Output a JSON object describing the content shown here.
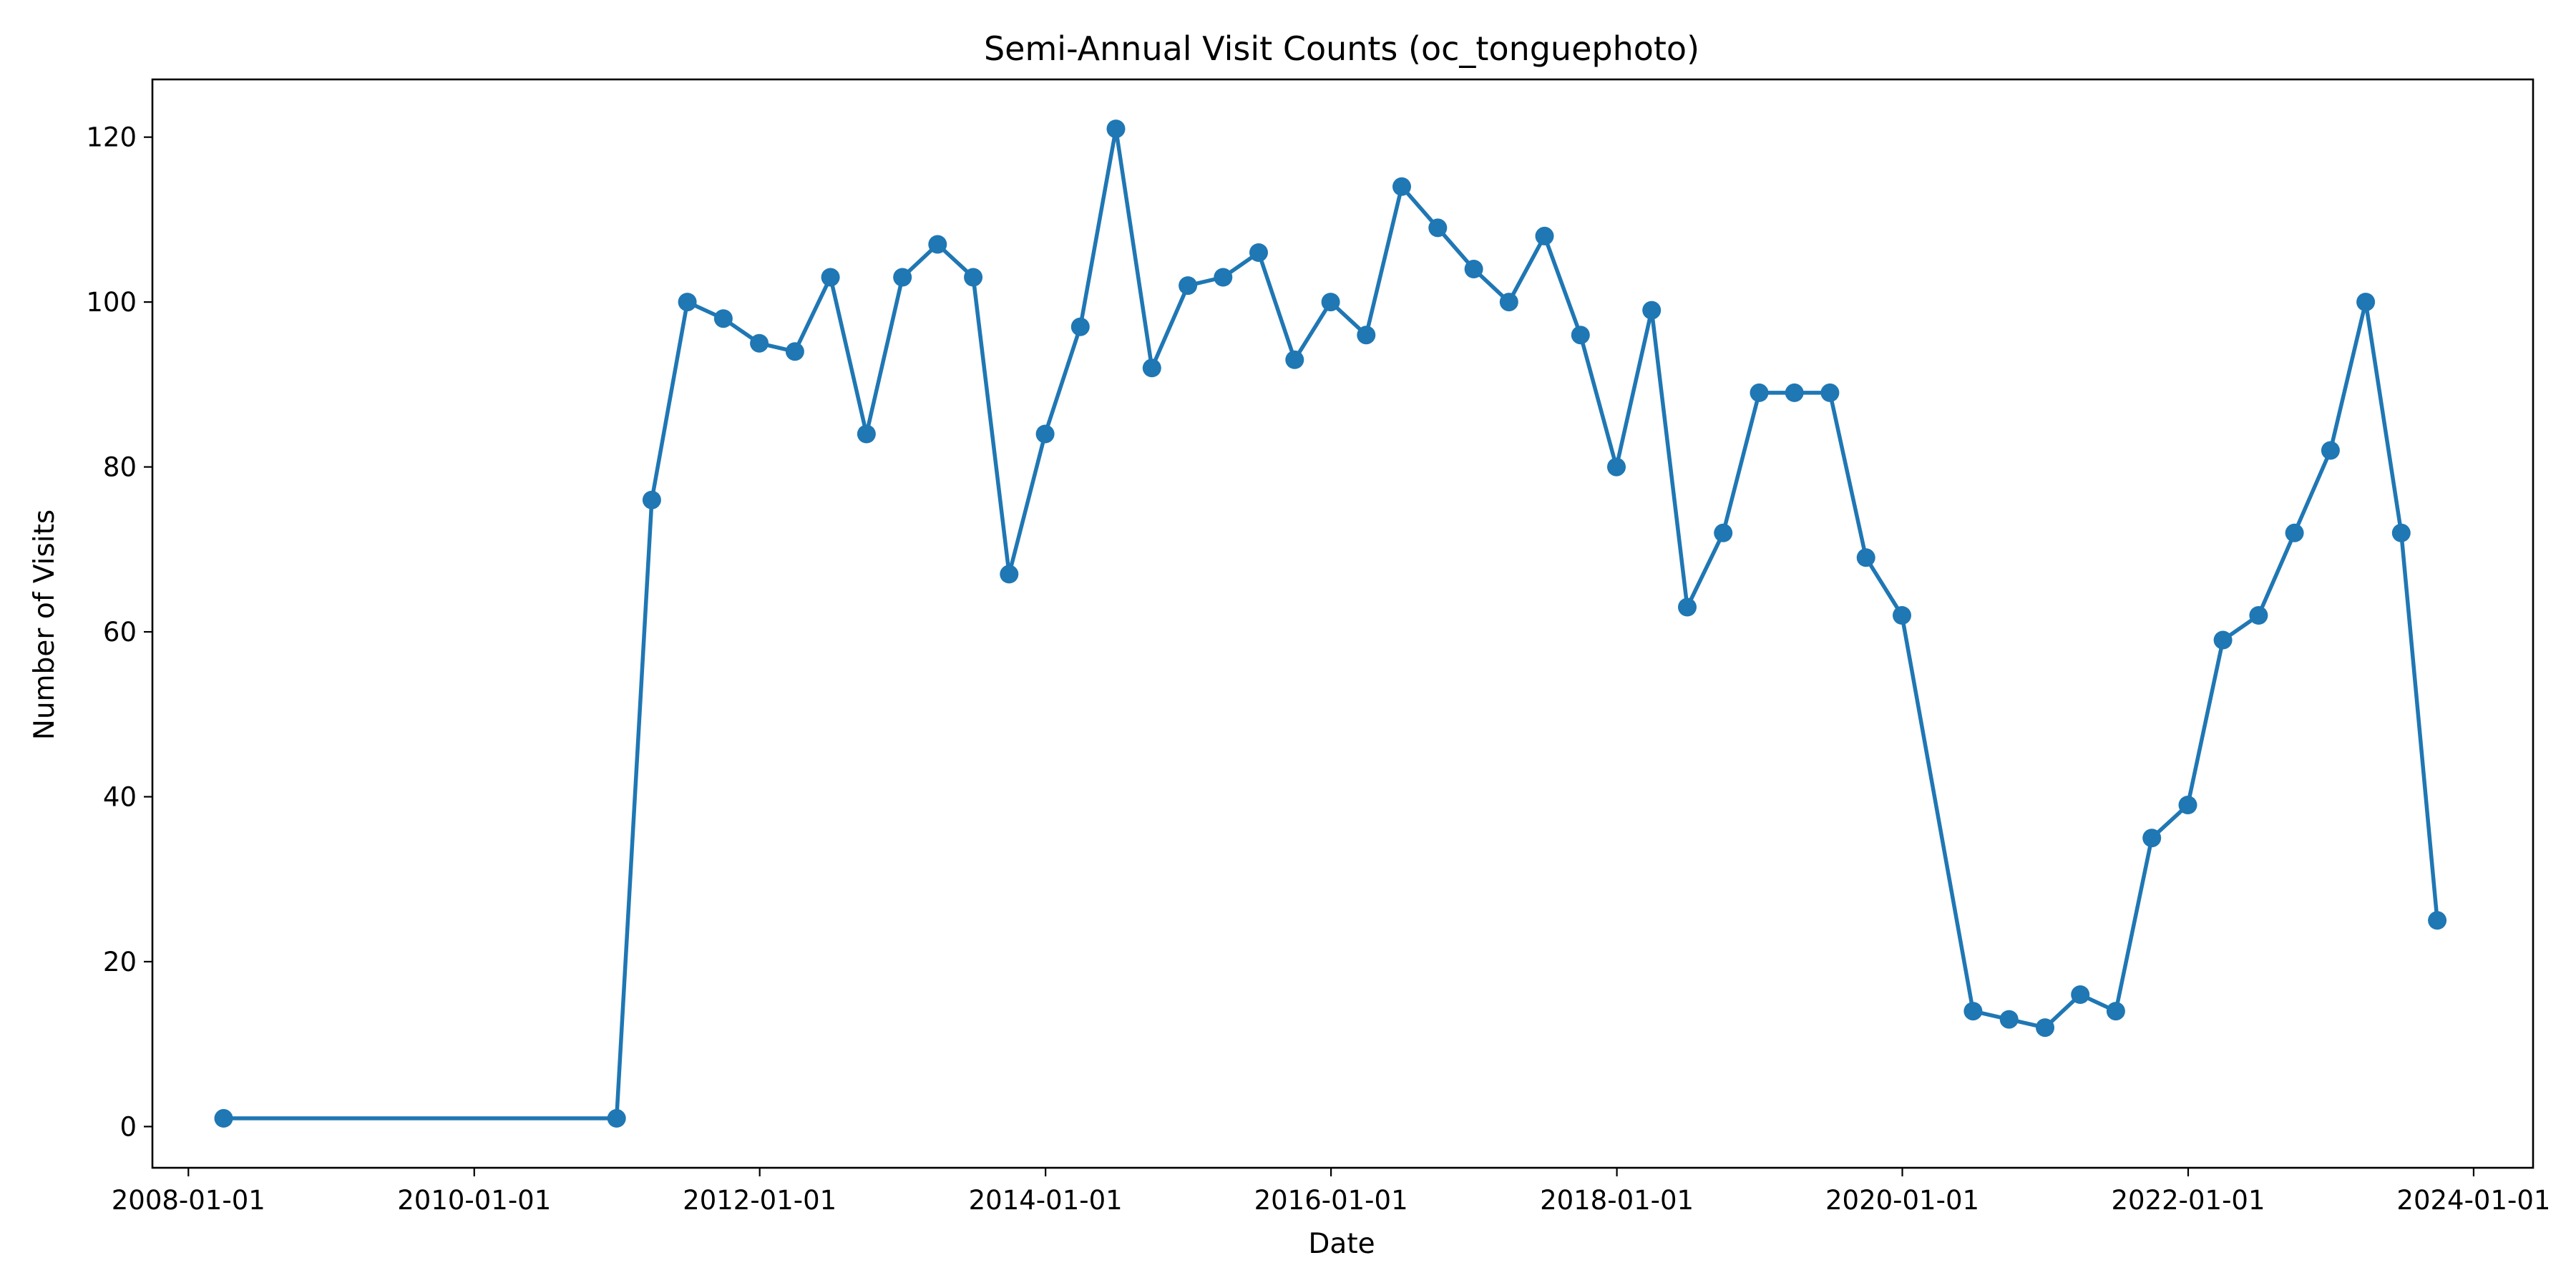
{
  "chart_data": {
    "type": "line",
    "title": "Semi-Annual Visit Counts (oc_tonguephoto)",
    "xlabel": "Date",
    "ylabel": "Number of Visits",
    "x_tick_labels": [
      "2008-01-01",
      "2010-01-01",
      "2012-01-01",
      "2014-01-01",
      "2016-01-01",
      "2018-01-01",
      "2020-01-01",
      "2022-01-01",
      "2024-01-01"
    ],
    "y_tick_labels": [
      "0",
      "20",
      "40",
      "60",
      "80",
      "100",
      "120"
    ],
    "xlim": [
      "2007-10-01",
      "2024-06-01"
    ],
    "ylim": [
      -5,
      127
    ],
    "grid": false,
    "legend": "none",
    "color": "#1f77b4",
    "series": [
      {
        "x": [
          "2008-03-31",
          "2010-12-31",
          "2011-03-31",
          "2011-06-30",
          "2011-09-30",
          "2011-12-31",
          "2012-03-31",
          "2012-06-30",
          "2012-09-30",
          "2012-12-31",
          "2013-03-31",
          "2013-06-30",
          "2013-09-30",
          "2013-12-31",
          "2014-03-31",
          "2014-06-30",
          "2014-09-30",
          "2014-12-31",
          "2015-03-31",
          "2015-06-30",
          "2015-09-30",
          "2015-12-31",
          "2016-03-31",
          "2016-06-30",
          "2016-09-30",
          "2016-12-31",
          "2017-03-31",
          "2017-06-30",
          "2017-09-30",
          "2017-12-31",
          "2018-03-31",
          "2018-06-30",
          "2018-09-30",
          "2018-12-31",
          "2019-03-31",
          "2019-06-30",
          "2019-09-30",
          "2019-12-31",
          "2020-06-30",
          "2020-09-30",
          "2020-12-31",
          "2021-03-31",
          "2021-06-30",
          "2021-09-30",
          "2021-12-31",
          "2022-03-31",
          "2022-06-30",
          "2022-09-30",
          "2022-12-31",
          "2023-03-31",
          "2023-06-30",
          "2023-09-30"
        ],
        "y": [
          1,
          1,
          76,
          100,
          98,
          95,
          94,
          103,
          84,
          103,
          107,
          103,
          67,
          84,
          97,
          121,
          92,
          102,
          103,
          106,
          93,
          100,
          96,
          114,
          109,
          104,
          100,
          108,
          96,
          80,
          99,
          63,
          72,
          89,
          89,
          89,
          69,
          62,
          14,
          13,
          12,
          16,
          14,
          35,
          39,
          59,
          62,
          72,
          82,
          100,
          72,
          25
        ]
      }
    ]
  }
}
